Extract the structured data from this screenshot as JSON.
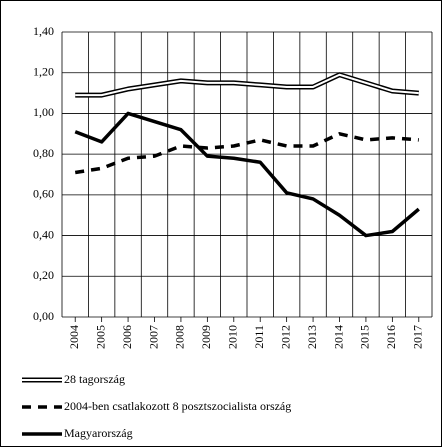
{
  "chart_data": {
    "type": "line",
    "categories": [
      "2004",
      "2005",
      "2006",
      "2007",
      "2008",
      "2009",
      "2010",
      "2011",
      "2012",
      "2013",
      "2014",
      "2015",
      "2016",
      "2017"
    ],
    "series": [
      {
        "name": "28 tagország",
        "color": "#000000",
        "style": "double",
        "values": [
          1.09,
          1.09,
          1.12,
          1.14,
          1.16,
          1.15,
          1.15,
          1.14,
          1.13,
          1.13,
          1.19,
          1.15,
          1.11,
          1.1
        ]
      },
      {
        "name": "2004-ben csatlakozott 8 posztszocialista ország",
        "color": "#000000",
        "style": "dashed",
        "values": [
          0.71,
          0.73,
          0.78,
          0.79,
          0.84,
          0.83,
          0.84,
          0.87,
          0.84,
          0.84,
          0.9,
          0.87,
          0.88,
          0.87
        ]
      },
      {
        "name": "Magyarország",
        "color": "#000000",
        "style": "solid",
        "values": [
          0.91,
          0.86,
          1.0,
          0.96,
          0.92,
          0.79,
          0.78,
          0.76,
          0.61,
          0.58,
          0.5,
          0.4,
          0.42,
          0.53
        ]
      }
    ],
    "ylim": [
      0,
      1.4
    ],
    "yticks": [
      {
        "value": 0,
        "label": "0,00"
      },
      {
        "value": 0.2,
        "label": "0,20"
      },
      {
        "value": 0.4,
        "label": "0,40"
      },
      {
        "value": 0.6,
        "label": "0,60"
      },
      {
        "value": 0.8,
        "label": "0,80"
      },
      {
        "value": 1.0,
        "label": "1,00"
      },
      {
        "value": 1.2,
        "label": "1,20"
      },
      {
        "value": 1.4,
        "label": "1,40"
      }
    ],
    "grid": true
  }
}
